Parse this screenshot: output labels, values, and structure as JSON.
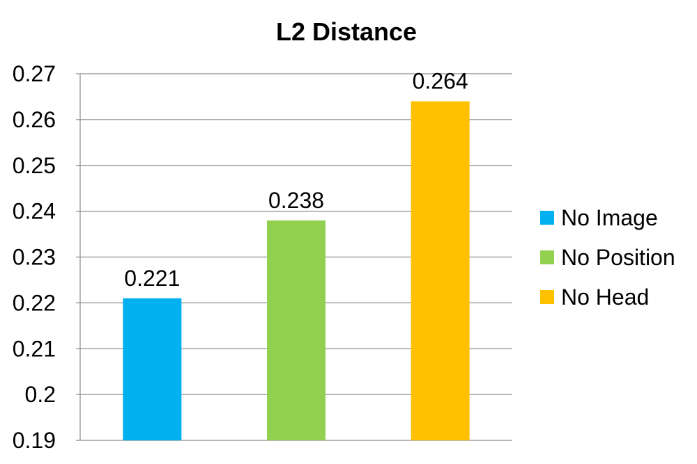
{
  "chart_data": {
    "type": "bar",
    "title": "L2 Distance",
    "xlabel": "",
    "ylabel": "",
    "ylim": [
      0.19,
      0.27
    ],
    "yticks": [
      "0.19",
      "0.2",
      "0.21",
      "0.22",
      "0.23",
      "0.24",
      "0.25",
      "0.26",
      "0.27"
    ],
    "ytick_values": [
      0.19,
      0.2,
      0.21,
      0.22,
      0.23,
      0.24,
      0.25,
      0.26,
      0.27
    ],
    "grid": true,
    "legend_position": "right",
    "series": [
      {
        "name": "No Image",
        "value": 0.221,
        "label": "0.221",
        "color": "#00B0F0"
      },
      {
        "name": "No Position",
        "value": 0.238,
        "label": "0.238",
        "color": "#92D050"
      },
      {
        "name": "No Head",
        "value": 0.264,
        "label": "0.264",
        "color": "#FFC000"
      }
    ]
  }
}
